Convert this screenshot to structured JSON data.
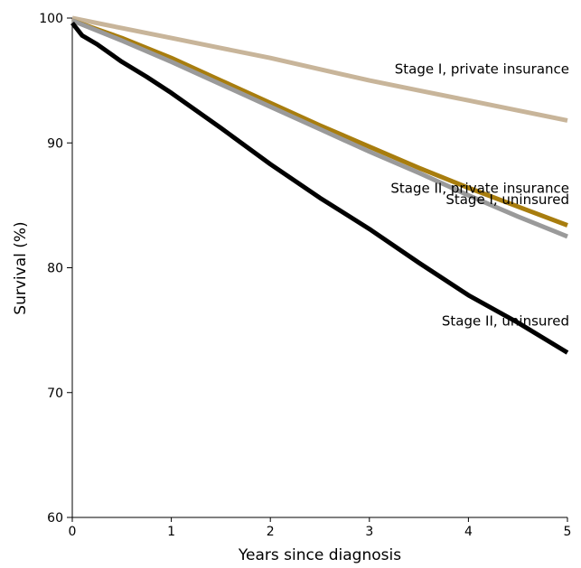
{
  "chart_data": {
    "type": "line",
    "title": "",
    "xlabel": "Years since diagnosis",
    "ylabel": "Survival (%)",
    "xlim": [
      0,
      5
    ],
    "ylim": [
      60,
      100
    ],
    "x_ticks": [
      0,
      1,
      2,
      3,
      4,
      5
    ],
    "y_ticks": [
      60,
      70,
      80,
      90,
      100
    ],
    "grid": false,
    "legend": "inline labels at line ends",
    "series": [
      {
        "name": "Stage I, private insurance",
        "color": "#c8b59a",
        "x": [
          0,
          0.5,
          1,
          1.5,
          2,
          2.5,
          3,
          3.5,
          4,
          4.5,
          5
        ],
        "y": [
          100,
          99.2,
          98.4,
          97.6,
          96.8,
          95.9,
          95.0,
          94.2,
          93.4,
          92.6,
          91.8
        ]
      },
      {
        "name": "Stage II, private insurance",
        "color": "#a87d0e",
        "x": [
          0,
          0.5,
          1,
          1.5,
          2,
          2.5,
          3,
          3.5,
          4,
          4.5,
          5
        ],
        "y": [
          99.8,
          98.4,
          96.8,
          95.0,
          93.2,
          91.4,
          89.7,
          88.0,
          86.4,
          84.9,
          83.4
        ]
      },
      {
        "name": "Stage I, uninsured",
        "color": "#9a9a9a",
        "x": [
          0,
          0.5,
          1,
          1.5,
          2,
          2.5,
          3,
          3.5,
          4,
          4.5,
          5
        ],
        "y": [
          99.8,
          98.2,
          96.5,
          94.7,
          92.9,
          91.1,
          89.3,
          87.6,
          85.8,
          84.1,
          82.5
        ]
      },
      {
        "name": "Stage II, uninsured",
        "color": "#000000",
        "x": [
          0,
          0.1,
          0.25,
          0.5,
          0.75,
          1,
          1.5,
          2,
          2.5,
          3,
          3.5,
          4,
          4.5,
          5
        ],
        "y": [
          99.6,
          98.6,
          97.9,
          96.5,
          95.3,
          94.0,
          91.2,
          88.3,
          85.6,
          83.1,
          80.4,
          77.8,
          75.6,
          73.2
        ]
      }
    ]
  }
}
